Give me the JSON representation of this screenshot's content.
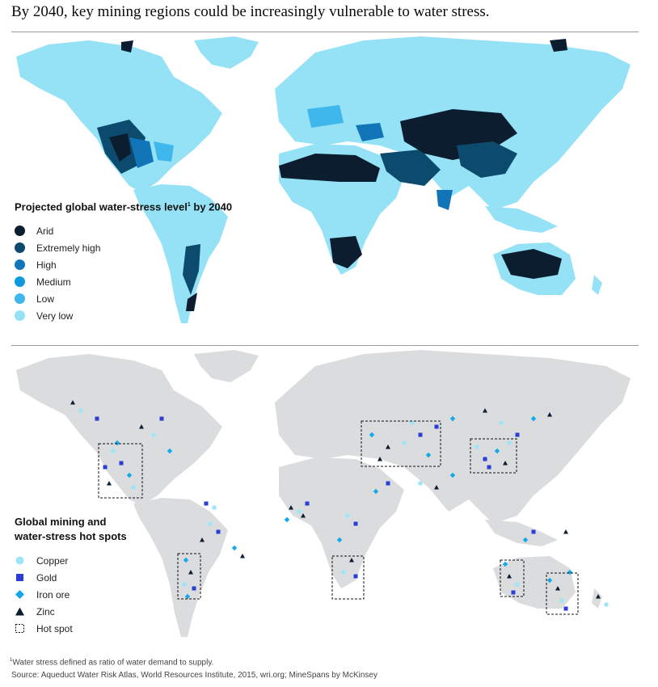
{
  "title": "By 2040, key mining regions could be increasingly vulnerable to water stress.",
  "stress_legend": {
    "heading": "Projected global water-stress level",
    "footnote_mark": "1",
    "heading_suffix": " by 2040",
    "items": [
      {
        "label": "Arid",
        "color": "#0b1d2e"
      },
      {
        "label": "Extremely high",
        "color": "#0c4a6e"
      },
      {
        "label": "High",
        "color": "#1275b8"
      },
      {
        "label": "Medium",
        "color": "#0f9ae0"
      },
      {
        "label": "Low",
        "color": "#3fb6ec"
      },
      {
        "label": "Very low",
        "color": "#95e2f6"
      }
    ]
  },
  "mining_legend": {
    "heading_line1": "Global mining and",
    "heading_line2": "water-stress hot spots",
    "items": [
      {
        "label": "Copper",
        "icon": "circle",
        "color": "#9ee6f7"
      },
      {
        "label": "Gold",
        "icon": "square",
        "color": "#2a3ed6"
      },
      {
        "label": "Iron ore",
        "icon": "diamond",
        "color": "#14a7ea"
      },
      {
        "label": "Zinc",
        "icon": "triangle",
        "color": "#0b1d2e"
      },
      {
        "label": "Hot spot",
        "icon": "dashed-square",
        "color": "#111111"
      }
    ]
  },
  "colors": {
    "land_grey": "#dadcde",
    "very_low": "#95e2f6",
    "arid": "#0b1d2e"
  },
  "footer": {
    "footnote_mark": "1",
    "footnote": "Water stress defined as ratio of water demand to supply.",
    "source": "Source: Aqueduct Water Risk Atlas, World Resources Institute, 2015, wri.org; MineSpans by McKinsey"
  }
}
